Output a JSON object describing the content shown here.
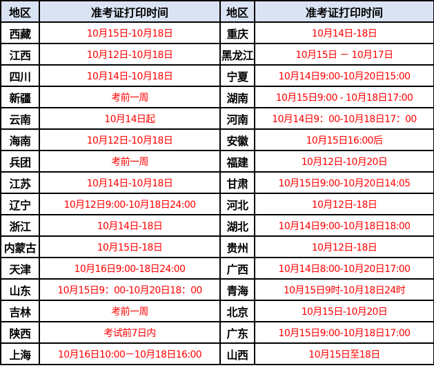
{
  "header": {
    "region": "地区",
    "time": "准考证打印时间"
  },
  "text_color": "#ff0000",
  "header_bg": "#dae3f3",
  "rows": [
    {
      "left_region": "西藏",
      "left_time": "10月15日-10月18日",
      "right_region": "重庆",
      "right_time": "10月14日-18日"
    },
    {
      "left_region": "江西",
      "left_time": "10月12日-10月18日",
      "right_region": "黑龙江",
      "right_time": "10月15日 － 10月17日"
    },
    {
      "left_region": "四川",
      "left_time": "10月14日-10月18日",
      "right_region": "宁夏",
      "right_time": "10月14日9:00-10月20日15:00"
    },
    {
      "left_region": "新疆",
      "left_time": "考前一周",
      "right_region": "湖南",
      "right_time": "10月15日9:00 - 10月18日17:00"
    },
    {
      "left_region": "云南",
      "left_time": "10月14日起",
      "right_region": "河南",
      "right_time": "10月14日9：00-10月18日17：00"
    },
    {
      "left_region": "海南",
      "left_time": "10月12日-10月18日",
      "right_region": "安徽",
      "right_time": "10月15日16:00后"
    },
    {
      "left_region": "兵团",
      "left_time": "考前一周",
      "right_region": "福建",
      "right_time": "10月12日-10月20日"
    },
    {
      "left_region": "江苏",
      "left_time": "10月14日-10月18日",
      "right_region": "甘肃",
      "right_time": "10月15日9:00-10月20日14:05"
    },
    {
      "left_region": "辽宁",
      "left_time": "10月12日9:00-10月18日24:00",
      "right_region": "河北",
      "right_time": "10月12日-18日"
    },
    {
      "left_region": "浙江",
      "left_time": "10月14日-18日",
      "right_region": "湖北",
      "right_time": "10月14日9:00-10月18日18:00"
    },
    {
      "left_region": "内蒙古",
      "left_time": "10月15日-18日",
      "right_region": "贵州",
      "right_time": "10月12日-18日"
    },
    {
      "left_region": "天津",
      "left_time": "10月16日9:00-18日24:00",
      "right_region": "广西",
      "right_time": "10月14日8:00-10月20日17:00"
    },
    {
      "left_region": "山东",
      "left_time": "10月15日9：00-10月20日18：00",
      "right_region": "青海",
      "right_time": "10月15日9时-10月18日24时"
    },
    {
      "left_region": "吉林",
      "left_time": "考前一周",
      "right_region": "北京",
      "right_time": "10月15日-10月20日"
    },
    {
      "left_region": "陕西",
      "left_time": "考试前7日内",
      "right_region": "广东",
      "right_time": "10月15日9:00-10月18日17:00"
    },
    {
      "left_region": "上海",
      "left_time": "10月16日10:00－10月18日16:00",
      "right_region": "山西",
      "right_time": "10月15日至18日"
    }
  ]
}
